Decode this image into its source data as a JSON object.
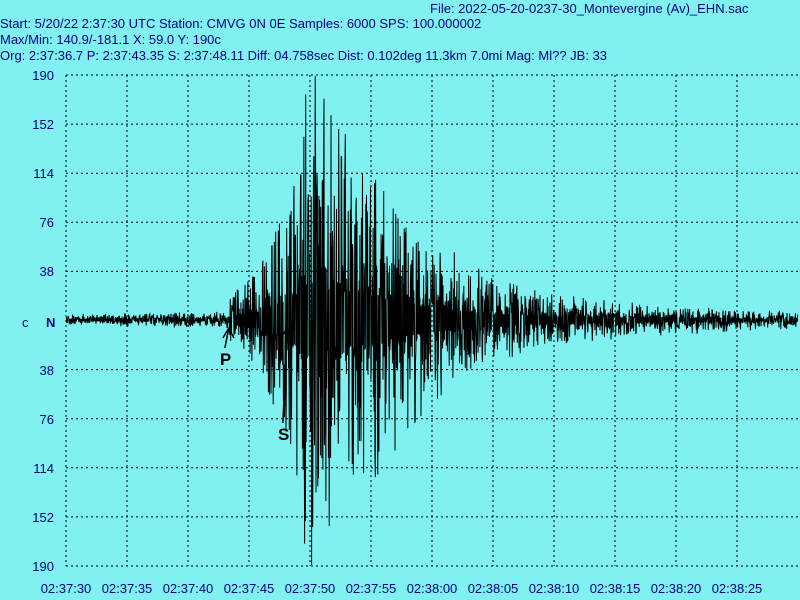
{
  "header": {
    "file": "File: 2022-05-20-0237-30_Montevergine (Av)_EHN.sac",
    "start": "Start: 5/20/22  2:37:30 UTC Station: CMVG 0N 0E Samples: 6000  SPS: 100.000002",
    "maxmin": "Max/Min: 140.9/-181.1 X: 59.0 Y: 190c",
    "org": "Org: 2:37:36.7 P: 2:37:43.35 S: 2:37:48.11 Diff: 04.758sec Dist: 0.102deg 11.3km 7.0mi  Mag: Ml?? JB: 33"
  },
  "colors": {
    "background": "#80f0f0",
    "text": "#000080",
    "trace": "#000000",
    "grid": "#000000"
  },
  "chart_data": {
    "type": "line",
    "title": "",
    "xlabel": "",
    "ylabel": "",
    "x_tick_labels": [
      "02:37:30",
      "02:37:35",
      "02:37:40",
      "02:37:45",
      "02:37:50",
      "02:37:55",
      "02:38:00",
      "02:38:05",
      "02:38:10",
      "02:38:15",
      "02:38:20",
      "02:38:25"
    ],
    "y_tick_labels": [
      "190",
      "152",
      "114",
      "76",
      "38",
      "c",
      "38",
      "76",
      "114",
      "152",
      "190"
    ],
    "center_marker": "N",
    "xlim_seconds_from_start": [
      0,
      60
    ],
    "ylim": [
      -190,
      190
    ],
    "grid": true,
    "picks": [
      {
        "label": "P",
        "time": "2:37:43.35"
      },
      {
        "label": "S",
        "time": "2:37:48.11"
      }
    ],
    "series": [
      {
        "envelope": [
          {
            "t": "02:37:30",
            "amp": 4
          },
          {
            "t": "02:37:43",
            "amp": 6
          },
          {
            "t": "02:37:44",
            "amp": 25
          },
          {
            "t": "02:37:46",
            "amp": 45
          },
          {
            "t": "02:37:48",
            "amp": 95
          },
          {
            "t": "02:37:50",
            "amp": 181
          },
          {
            "t": "02:37:52",
            "amp": 140
          },
          {
            "t": "02:37:54",
            "amp": 130
          },
          {
            "t": "02:37:56",
            "amp": 110
          },
          {
            "t": "02:37:58",
            "amp": 80
          },
          {
            "t": "02:38:00",
            "amp": 60
          },
          {
            "t": "02:38:05",
            "amp": 30
          },
          {
            "t": "02:38:10",
            "amp": 18
          },
          {
            "t": "02:38:20",
            "amp": 10
          },
          {
            "t": "02:38:30",
            "amp": 6
          }
        ]
      }
    ]
  }
}
